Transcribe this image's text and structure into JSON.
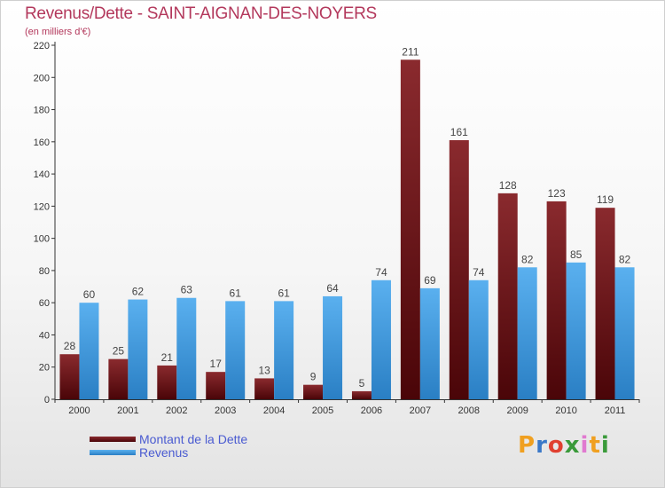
{
  "title": "Revenus/Dette - SAINT-AIGNAN-DES-NOYERS",
  "subtitle": "(en milliers d'€)",
  "logo": {
    "text": "Proxiti",
    "colors": [
      "#f0a020",
      "#3a78c8",
      "#e04030",
      "#3a9a3a",
      "#e07ad0",
      "#f0a020",
      "#3a9a3a"
    ]
  },
  "chart_data": {
    "type": "bar",
    "categories": [
      "2000",
      "2001",
      "2002",
      "2003",
      "2004",
      "2005",
      "2006",
      "2007",
      "2008",
      "2009",
      "2010",
      "2011"
    ],
    "series": [
      {
        "name": "Montant de la Dette",
        "color": "#6b1419",
        "values": [
          28,
          25,
          21,
          17,
          13,
          9,
          5,
          211,
          161,
          128,
          123,
          119
        ]
      },
      {
        "name": "Revenus",
        "color": "#4a9fe0",
        "values": [
          60,
          62,
          63,
          61,
          61,
          64,
          74,
          69,
          74,
          82,
          85,
          82
        ]
      }
    ],
    "ylim": [
      0,
      220
    ],
    "yticks": [
      0,
      20,
      40,
      60,
      80,
      100,
      120,
      140,
      160,
      180,
      200,
      220
    ],
    "grid": false,
    "legend": "bottom-left"
  }
}
